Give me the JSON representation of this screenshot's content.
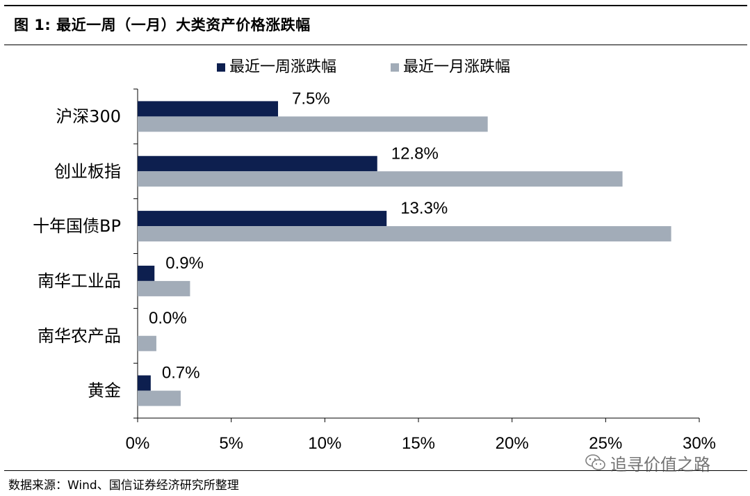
{
  "header": {
    "title": "图 1:  最近一周（一月）大类资产价格涨跌幅"
  },
  "chart_data": {
    "type": "bar",
    "orientation": "horizontal",
    "categories": [
      "沪深300",
      "创业板指",
      "十年国债BP",
      "南华工业品",
      "南华农产品",
      "黄金"
    ],
    "series": [
      {
        "name": "最近一周涨跌幅",
        "values": [
          7.5,
          12.8,
          13.3,
          0.9,
          0.0,
          0.7
        ],
        "color": "#0d1f4f",
        "labels": [
          "7.5%",
          "12.8%",
          "13.3%",
          "0.9%",
          "0.0%",
          "0.7%"
        ]
      },
      {
        "name": "最近一月涨跌幅",
        "values": [
          18.7,
          25.9,
          28.5,
          2.8,
          1.0,
          2.3
        ],
        "color": "#a2acb8"
      }
    ],
    "xlim": [
      0,
      30
    ],
    "xticks": [
      "0%",
      "5%",
      "10%",
      "15%",
      "20%",
      "25%",
      "30%"
    ],
    "legend_position": "top",
    "grid": false
  },
  "footer": {
    "source": "数据来源：Wind、国信证券经济研究所整理",
    "watermark": "追寻价值之路"
  }
}
